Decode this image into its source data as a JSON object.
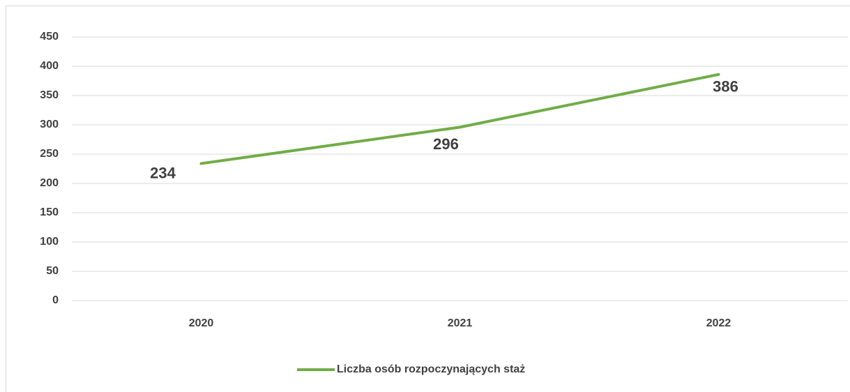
{
  "chart_data": {
    "type": "line",
    "categories": [
      "2020",
      "2021",
      "2022"
    ],
    "series": [
      {
        "name": "Liczba osób rozpoczynających staż",
        "color": "#70ad47",
        "values": [
          234,
          296,
          386
        ]
      }
    ],
    "ylim": [
      0,
      450
    ],
    "yticks": [
      0,
      50,
      100,
      150,
      200,
      250,
      300,
      350,
      400,
      450
    ],
    "grid": true,
    "legend": "bottom"
  }
}
